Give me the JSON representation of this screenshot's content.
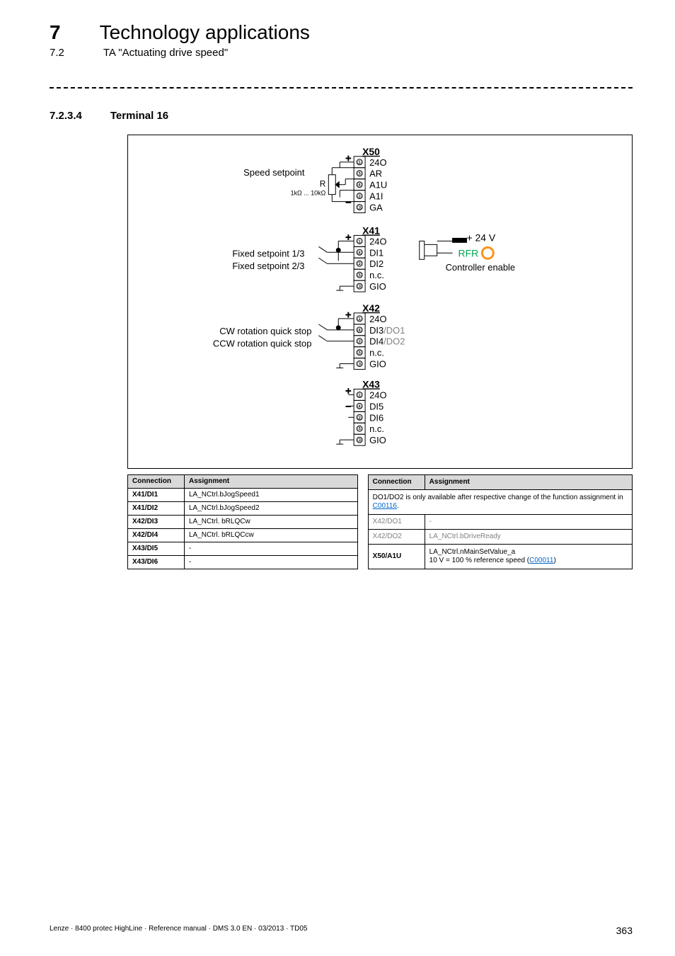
{
  "header": {
    "chapter_num": "7",
    "chapter_title": "Technology applications",
    "subchapter_num": "7.2",
    "subchapter_title": "TA \"Actuating drive speed\""
  },
  "section": {
    "num": "7.2.3.4",
    "title": "Terminal 16"
  },
  "diagram": {
    "labels_left": {
      "speed_setpoint": "Speed setpoint",
      "r_label": "R",
      "r_range": "1kΩ ... 10kΩ",
      "fixed_13": "Fixed setpoint 1/3",
      "fixed_23": "Fixed setpoint 2/3",
      "cw": "CW rotation quick stop",
      "ccw": "CCW rotation quick stop"
    },
    "labels_right": {
      "plus24": "+ 24 V",
      "rfr": "RFR",
      "ctrl_enable": "Controller enable"
    },
    "terminal_header_x50": "X50",
    "terminal_header_x41": "X41",
    "terminal_header_x42": "X42",
    "terminal_header_x43": "X43",
    "x50_rows": [
      "24O",
      "AR",
      "A1U",
      "A1I",
      "GA"
    ],
    "x50_nums": [
      "①",
      "⑤",
      "④",
      "②",
      "③"
    ],
    "x41_rows": [
      "24O",
      "DI1",
      "DI2",
      "n.c.",
      "GIO"
    ],
    "x41_nums": [
      "①",
      "④",
      "②",
      "⑤",
      "③"
    ],
    "x42_rows": [
      "24O",
      "DI3",
      "DI4",
      "n.c.",
      "GIO"
    ],
    "x42_rows_alt": [
      "",
      "/DO1",
      "/DO2",
      "",
      ""
    ],
    "x42_nums": [
      "①",
      "④",
      "②",
      "⑤",
      "③"
    ],
    "x43_rows": [
      "24O",
      "DI5",
      "DI6",
      "n.c.",
      "GIO"
    ],
    "x43_nums": [
      "①",
      "④",
      "②",
      "⑤",
      "③"
    ]
  },
  "table1": {
    "col1": "Connection",
    "col2": "Assignment",
    "rows": [
      {
        "c": "X41/DI1",
        "a": "LA_NCtrl.bJogSpeed1"
      },
      {
        "c": "X41/DI2",
        "a": "LA_NCtrl.bJogSpeed2"
      },
      {
        "c": "X42/DI3",
        "a": "LA_NCtrl. bRLQCw"
      },
      {
        "c": "X42/DI4",
        "a": "LA_NCtrl. bRLQCcw"
      },
      {
        "c": "X43/DI5",
        "a": "-"
      },
      {
        "c": "X43/DI6",
        "a": "-"
      }
    ]
  },
  "table2": {
    "col1": "Connection",
    "col2": "Assignment",
    "note_pre": "DO1/DO2 is only available after respective change of the function assignment in ",
    "note_link": "C00116",
    "note_post": ".",
    "rows_grey": [
      {
        "c": "X42/DO1",
        "a": "-"
      },
      {
        "c": "X42/DO2",
        "a": "LA_NCtrl.bDriveReady"
      }
    ],
    "row_bold_c": "X50/A1U",
    "row_line1": "LA_NCtrl.nMainSetValue_a",
    "row_line2_pre": "10 V = 100 % reference speed (",
    "row_line2_link": "C00011",
    "row_line2_post": ")"
  },
  "footer": {
    "left": "Lenze · 8400 protec HighLine · Reference manual · DMS 3.0 EN · 03/2013 · TD05",
    "pagenum": "363"
  },
  "colors": {
    "green": "#00a651",
    "orange": "#f7941d",
    "grey": "#808080"
  }
}
